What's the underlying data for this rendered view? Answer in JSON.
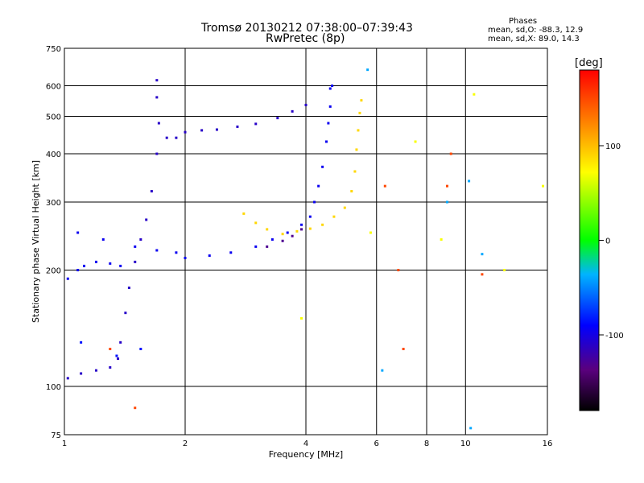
{
  "title": "Tromsø 20130212 07:38:00–07:39:43",
  "subtitle": "RwPretec (8p)",
  "phase_box": {
    "header": "Phases",
    "line_o": "mean, sd,O: -88.3, 12.9",
    "line_x": "mean, sd,X:  89.0, 14.3"
  },
  "colors": {
    "gridline": "#000000",
    "background": "#ffffff"
  },
  "chart_data": {
    "type": "scatter",
    "title": "Tromsø 20130212 07:38:00–07:39:43",
    "subtitle": "RwPretec (8p)",
    "xlabel": "Frequency [MHz]",
    "ylabel": "Stationary phase Virtual Height [km]",
    "x_scale": "log",
    "y_scale": "log",
    "xlim": [
      1,
      16
    ],
    "ylim": [
      75,
      750
    ],
    "x_ticks": [
      1,
      2,
      4,
      6,
      8,
      10,
      16
    ],
    "y_ticks": [
      75,
      100,
      200,
      300,
      400,
      500,
      600,
      750
    ],
    "x_grid": [
      2,
      4,
      6,
      8,
      10
    ],
    "y_grid": [
      100,
      200,
      300,
      400,
      500,
      600
    ],
    "colorbar": {
      "label": "[deg]",
      "range": [
        -180,
        180
      ],
      "ticks": [
        -100,
        0,
        100
      ]
    },
    "series": [
      {
        "points": [
          [
            1.02,
            190
          ],
          [
            1.08,
            200
          ],
          [
            1.12,
            205
          ],
          [
            1.2,
            210
          ],
          [
            1.3,
            208
          ],
          [
            1.38,
            205
          ],
          [
            1.08,
            250
          ],
          [
            1.25,
            240
          ],
          [
            1.5,
            230
          ],
          [
            1.7,
            225
          ],
          [
            1.9,
            222
          ],
          [
            2.0,
            215
          ],
          [
            2.3,
            218
          ],
          [
            2.6,
            222
          ],
          [
            3.0,
            230
          ],
          [
            3.3,
            240
          ],
          [
            3.6,
            250
          ],
          [
            3.9,
            262
          ],
          [
            4.1,
            275
          ],
          [
            4.2,
            300
          ],
          [
            4.3,
            330
          ],
          [
            4.4,
            370
          ],
          [
            4.5,
            430
          ],
          [
            4.55,
            480
          ],
          [
            4.6,
            530
          ],
          [
            4.6,
            590
          ],
          [
            4.65,
            600
          ]
        ],
        "phase": -95
      },
      {
        "points": [
          [
            1.02,
            105
          ],
          [
            1.1,
            108
          ],
          [
            1.2,
            110
          ],
          [
            1.3,
            112
          ],
          [
            1.36,
            118
          ],
          [
            1.38,
            130
          ],
          [
            1.42,
            155
          ],
          [
            1.45,
            180
          ],
          [
            1.5,
            210
          ],
          [
            1.55,
            240
          ],
          [
            1.6,
            270
          ],
          [
            1.65,
            320
          ],
          [
            1.7,
            400
          ],
          [
            1.72,
            480
          ],
          [
            1.7,
            560
          ],
          [
            1.7,
            620
          ],
          [
            1.8,
            440
          ],
          [
            1.9,
            440
          ],
          [
            2.0,
            455
          ],
          [
            2.2,
            460
          ],
          [
            2.4,
            462
          ],
          [
            2.7,
            470
          ],
          [
            3.0,
            478
          ],
          [
            3.4,
            495
          ],
          [
            3.7,
            515
          ],
          [
            4.0,
            535
          ]
        ],
        "phase": -110
      },
      {
        "points": [
          [
            1.1,
            130
          ],
          [
            1.35,
            120
          ],
          [
            1.55,
            125
          ]
        ],
        "phase": -85
      },
      {
        "points": [
          [
            2.8,
            280
          ],
          [
            3.0,
            265
          ],
          [
            3.2,
            255
          ],
          [
            3.5,
            248
          ],
          [
            3.8,
            252
          ],
          [
            4.1,
            256
          ],
          [
            4.4,
            262
          ],
          [
            4.7,
            275
          ],
          [
            5.0,
            290
          ],
          [
            5.2,
            320
          ],
          [
            5.3,
            360
          ],
          [
            5.35,
            410
          ],
          [
            5.4,
            460
          ],
          [
            5.45,
            510
          ],
          [
            5.5,
            550
          ]
        ],
        "phase": 89
      },
      {
        "points": [
          [
            3.2,
            230
          ],
          [
            3.5,
            238
          ],
          [
            3.7,
            245
          ],
          [
            3.9,
            255
          ]
        ],
        "phase": -130
      },
      {
        "points": [
          [
            6.3,
            330
          ],
          [
            9.0,
            330
          ],
          [
            7.0,
            125
          ],
          [
            6.8,
            200
          ],
          [
            1.3,
            125
          ],
          [
            1.5,
            88
          ],
          [
            11.0,
            195
          ],
          [
            9.2,
            400
          ]
        ],
        "phase": 150
      },
      {
        "points": [
          [
            8.7,
            240
          ],
          [
            5.8,
            250
          ],
          [
            10.5,
            570
          ],
          [
            7.5,
            430
          ],
          [
            3.9,
            150
          ],
          [
            12.5,
            200
          ],
          [
            15.6,
            330
          ]
        ],
        "phase": 70
      },
      {
        "points": [
          [
            10.2,
            340
          ],
          [
            11.0,
            220
          ],
          [
            10.3,
            78
          ],
          [
            6.2,
            110
          ],
          [
            5.7,
            660
          ],
          [
            9.0,
            300
          ]
        ],
        "phase": -40
      }
    ]
  }
}
